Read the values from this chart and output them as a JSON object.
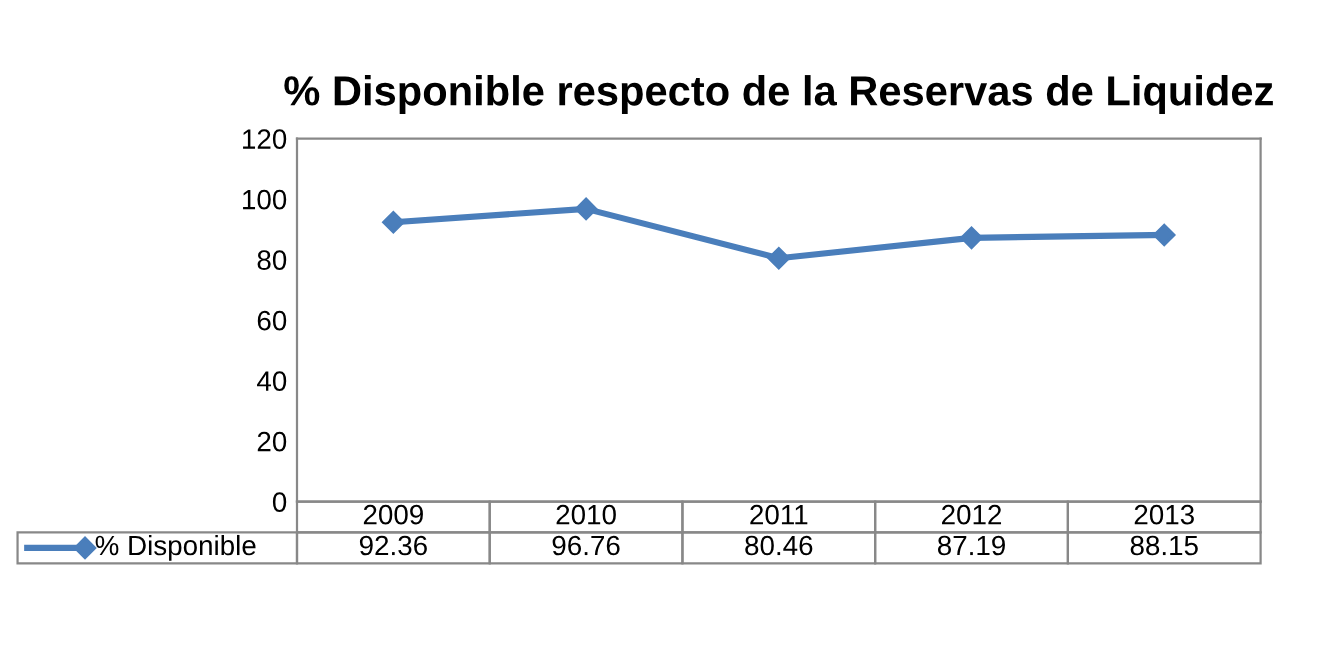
{
  "chart_data": {
    "type": "line",
    "title": "% Disponible respecto de la Reservas de Liquidez",
    "categories": [
      "2009",
      "2010",
      "2011",
      "2012",
      "2013"
    ],
    "series": [
      {
        "name": "% Disponible",
        "color": "#4a7ebb",
        "values": [
          92.36,
          96.76,
          80.46,
          87.19,
          88.15
        ]
      }
    ],
    "ylim": [
      0,
      120
    ],
    "yticks": [
      0,
      20,
      40,
      60,
      80,
      100,
      120
    ],
    "marker": "diamond",
    "line_style": "solid",
    "data_labels": true,
    "grid": false,
    "legend": "bottom"
  }
}
